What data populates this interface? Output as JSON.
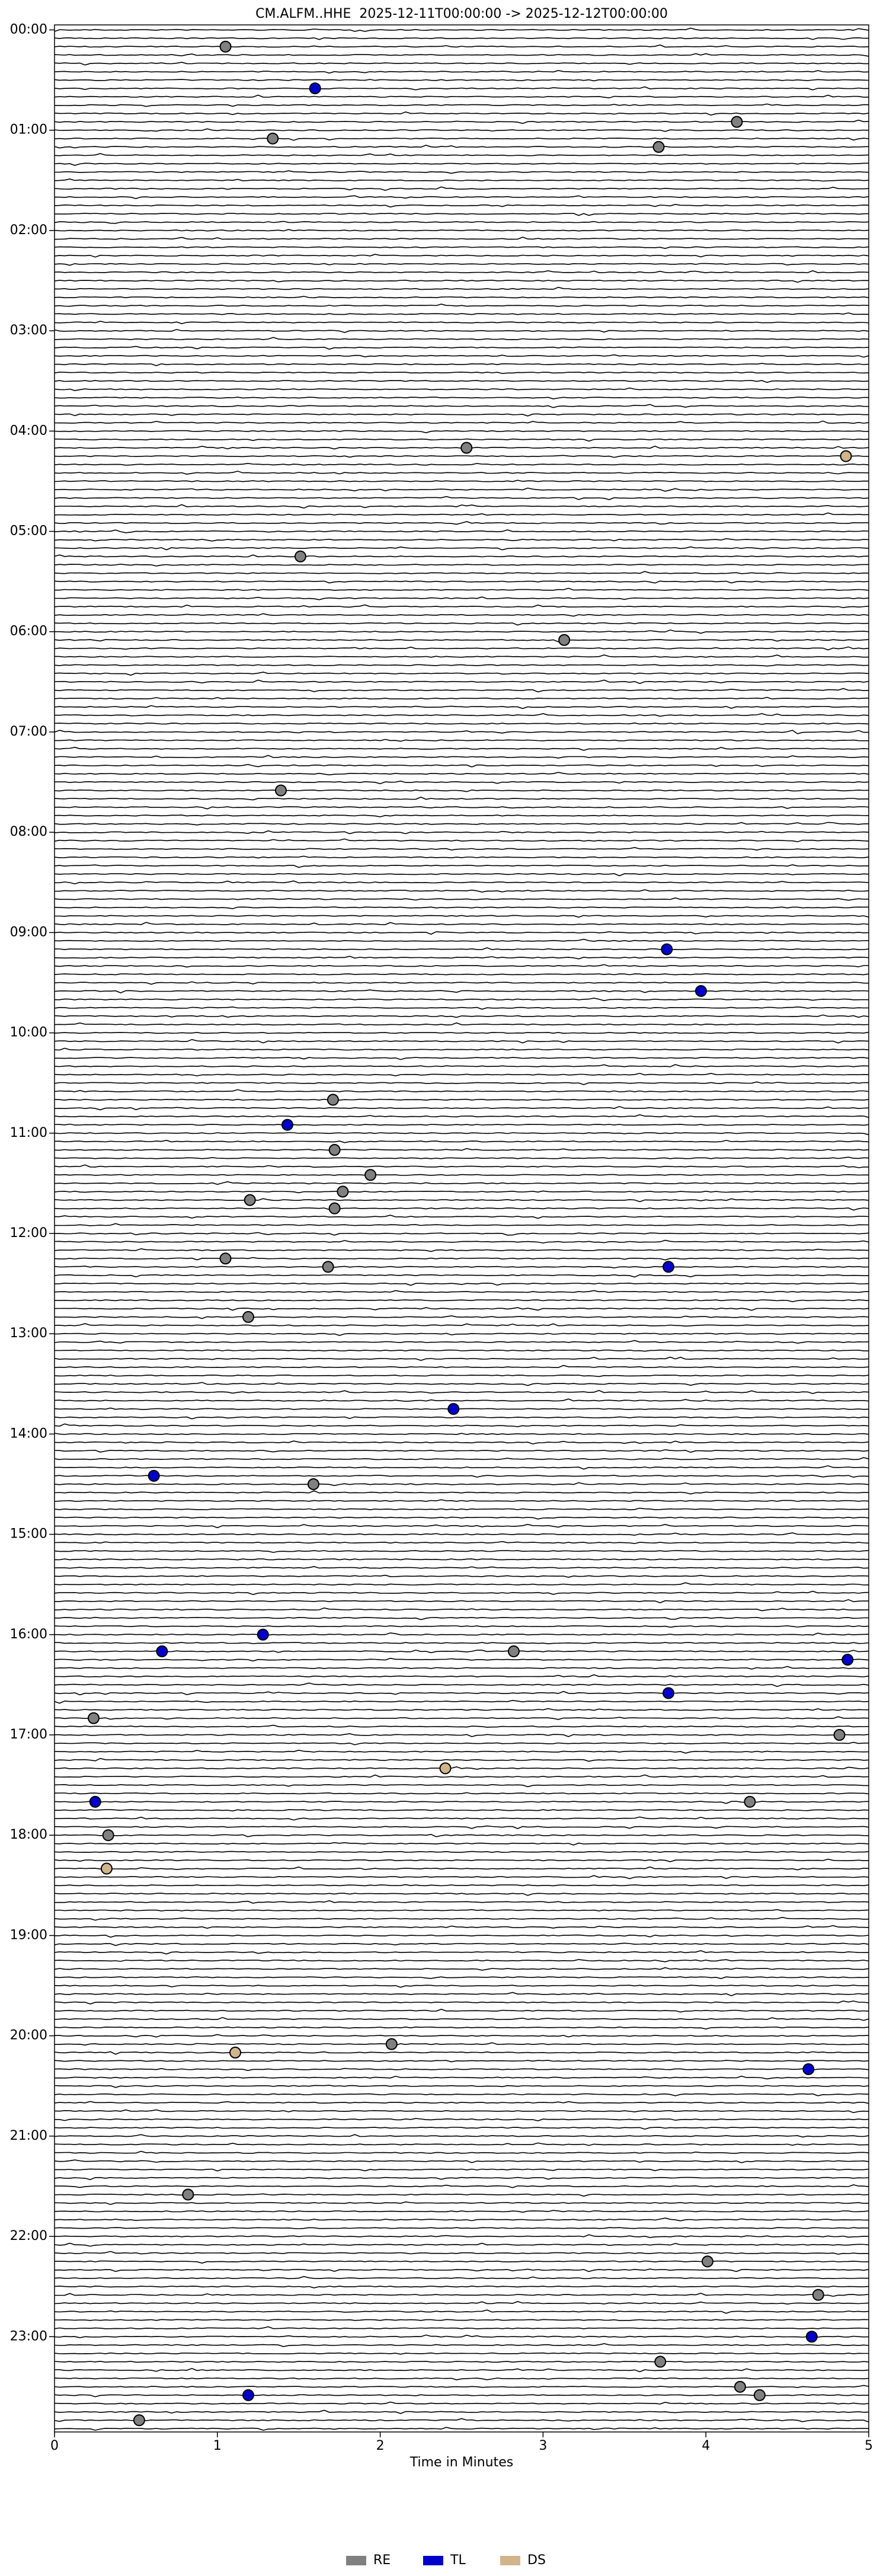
{
  "chart_data": {
    "type": "scatter",
    "title": "CM.ALFM..HHE  2025-12-11T00:00:00 -> 2025-12-12T00:00:00",
    "x_label": "Time in Minutes",
    "xlim": [
      0,
      5
    ],
    "xticks": [
      0,
      1,
      2,
      3,
      4,
      5
    ],
    "ylim": [
      23.95,
      -0.05
    ],
    "yticks": [
      {
        "value": 0,
        "label": "00:00"
      },
      {
        "value": 1,
        "label": "01:00"
      },
      {
        "value": 2,
        "label": "02:00"
      },
      {
        "value": 3,
        "label": "03:00"
      },
      {
        "value": 4,
        "label": "04:00"
      },
      {
        "value": 5,
        "label": "05:00"
      },
      {
        "value": 6,
        "label": "06:00"
      },
      {
        "value": 7,
        "label": "07:00"
      },
      {
        "value": 8,
        "label": "08:00"
      },
      {
        "value": 9,
        "label": "09:00"
      },
      {
        "value": 10,
        "label": "10:00"
      },
      {
        "value": 11,
        "label": "11:00"
      },
      {
        "value": 12,
        "label": "12:00"
      },
      {
        "value": 13,
        "label": "13:00"
      },
      {
        "value": 14,
        "label": "14:00"
      },
      {
        "value": 15,
        "label": "15:00"
      },
      {
        "value": 16,
        "label": "16:00"
      },
      {
        "value": 17,
        "label": "17:00"
      },
      {
        "value": 18,
        "label": "18:00"
      },
      {
        "value": 19,
        "label": "19:00"
      },
      {
        "value": 20,
        "label": "20:00"
      },
      {
        "value": 21,
        "label": "21:00"
      },
      {
        "value": 22,
        "label": "22:00"
      },
      {
        "value": 23,
        "label": "23:00"
      }
    ],
    "legend": "lower center",
    "series": [
      {
        "name": "RE",
        "color": "#808080",
        "x": [
          1.05,
          4.19,
          1.34,
          3.71,
          2.53,
          1.51,
          3.13,
          1.39,
          1.71,
          1.72,
          1.94,
          1.77,
          1.2,
          1.72,
          1.05,
          1.68,
          1.19,
          1.59,
          2.82,
          0.24,
          4.82,
          4.27,
          0.33,
          2.07,
          0.82,
          4.01,
          4.69,
          3.72,
          4.21,
          4.33,
          0.52
        ],
        "y": [
          0.167,
          0.917,
          1.083,
          1.167,
          4.167,
          5.25,
          6.083,
          7.583,
          10.667,
          11.167,
          11.417,
          11.583,
          11.667,
          11.75,
          12.25,
          12.333,
          12.833,
          14.5,
          16.167,
          16.833,
          17.0,
          17.667,
          18.0,
          20.083,
          21.583,
          22.25,
          22.583,
          23.25,
          23.5,
          23.583,
          23.833
        ]
      },
      {
        "name": "TL",
        "color": "#0000cc",
        "x": [
          1.6,
          3.76,
          3.97,
          1.43,
          3.77,
          2.45,
          0.61,
          1.28,
          0.66,
          4.87,
          3.77,
          0.25,
          4.63,
          4.65,
          1.19
        ],
        "y": [
          0.583,
          9.167,
          9.583,
          10.917,
          12.333,
          13.75,
          14.417,
          16.0,
          16.167,
          16.25,
          16.583,
          17.667,
          20.333,
          23.0,
          23.583
        ]
      },
      {
        "name": "DS",
        "color": "#d2b48c",
        "x": [
          4.86,
          2.4,
          0.32,
          1.11
        ],
        "y": [
          4.25,
          17.333,
          18.333,
          20.167
        ]
      }
    ]
  }
}
